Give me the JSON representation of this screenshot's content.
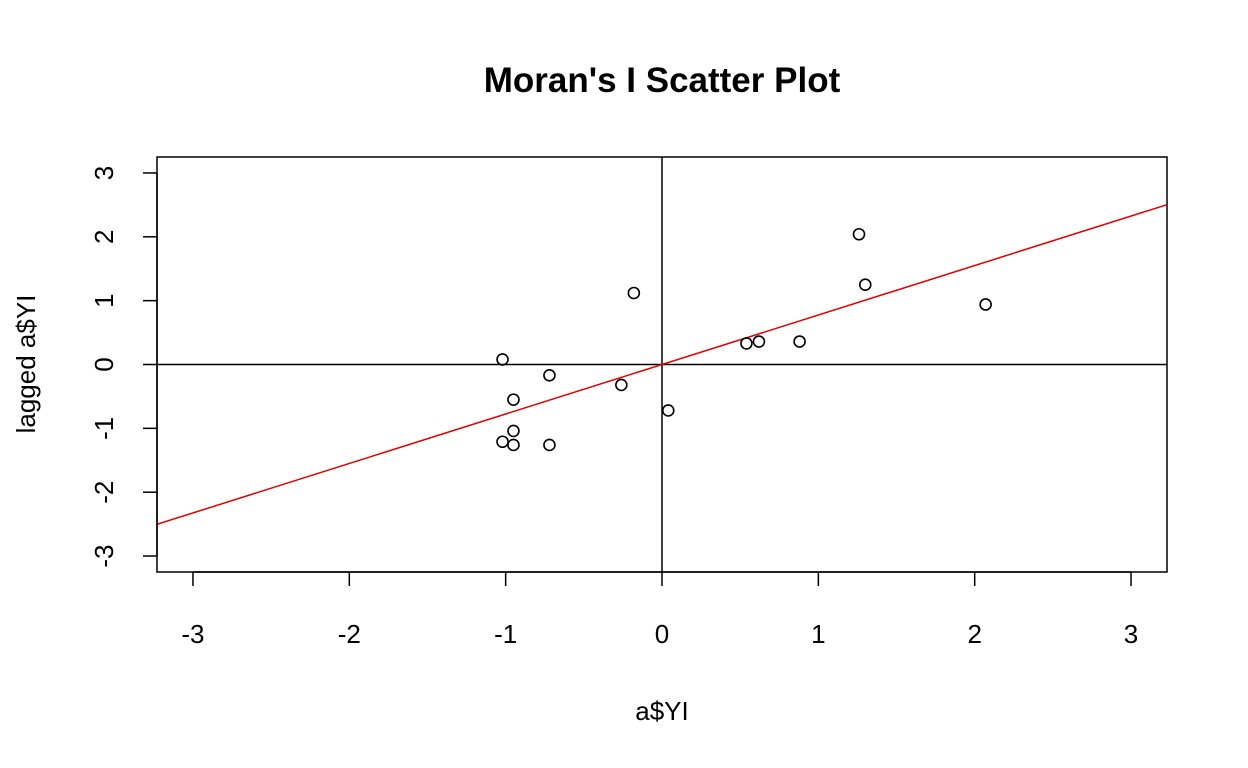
{
  "chart_data": {
    "type": "scatter",
    "title": "Moran's I Scatter Plot",
    "xlabel": "a$YI",
    "ylabel": "lagged a$YI",
    "xlim": [
      -3.23,
      3.23
    ],
    "ylim": [
      -3.25,
      3.25
    ],
    "xticks": [
      -3,
      -2,
      -1,
      0,
      1,
      2,
      3
    ],
    "yticks": [
      -3,
      -2,
      -1,
      0,
      1,
      2,
      3
    ],
    "xtick_labels": [
      "-3",
      "-2",
      "-1",
      "0",
      "1",
      "2",
      "3"
    ],
    "ytick_labels": [
      "-3",
      "-2",
      "-1",
      "0",
      "1",
      "2",
      "3"
    ],
    "grid": false,
    "legend": "none",
    "reference_lines": {
      "x": 0,
      "y": 0,
      "color": "#000000"
    },
    "regression_line": {
      "slope": 0.775,
      "intercept": 0,
      "color": "#e00000"
    },
    "points": [
      {
        "x": -1.02,
        "y": 0.08
      },
      {
        "x": -0.95,
        "y": -0.55
      },
      {
        "x": -0.72,
        "y": -0.17
      },
      {
        "x": -1.02,
        "y": -1.21
      },
      {
        "x": -0.95,
        "y": -1.04
      },
      {
        "x": -0.95,
        "y": -1.26
      },
      {
        "x": -0.72,
        "y": -1.26
      },
      {
        "x": -0.26,
        "y": -0.32
      },
      {
        "x": -0.18,
        "y": 1.12
      },
      {
        "x": 0.04,
        "y": -0.72
      },
      {
        "x": 0.54,
        "y": 0.33
      },
      {
        "x": 0.62,
        "y": 0.36
      },
      {
        "x": 0.88,
        "y": 0.36
      },
      {
        "x": 1.26,
        "y": 2.04
      },
      {
        "x": 1.3,
        "y": 1.25
      },
      {
        "x": 2.07,
        "y": 0.94
      }
    ]
  }
}
